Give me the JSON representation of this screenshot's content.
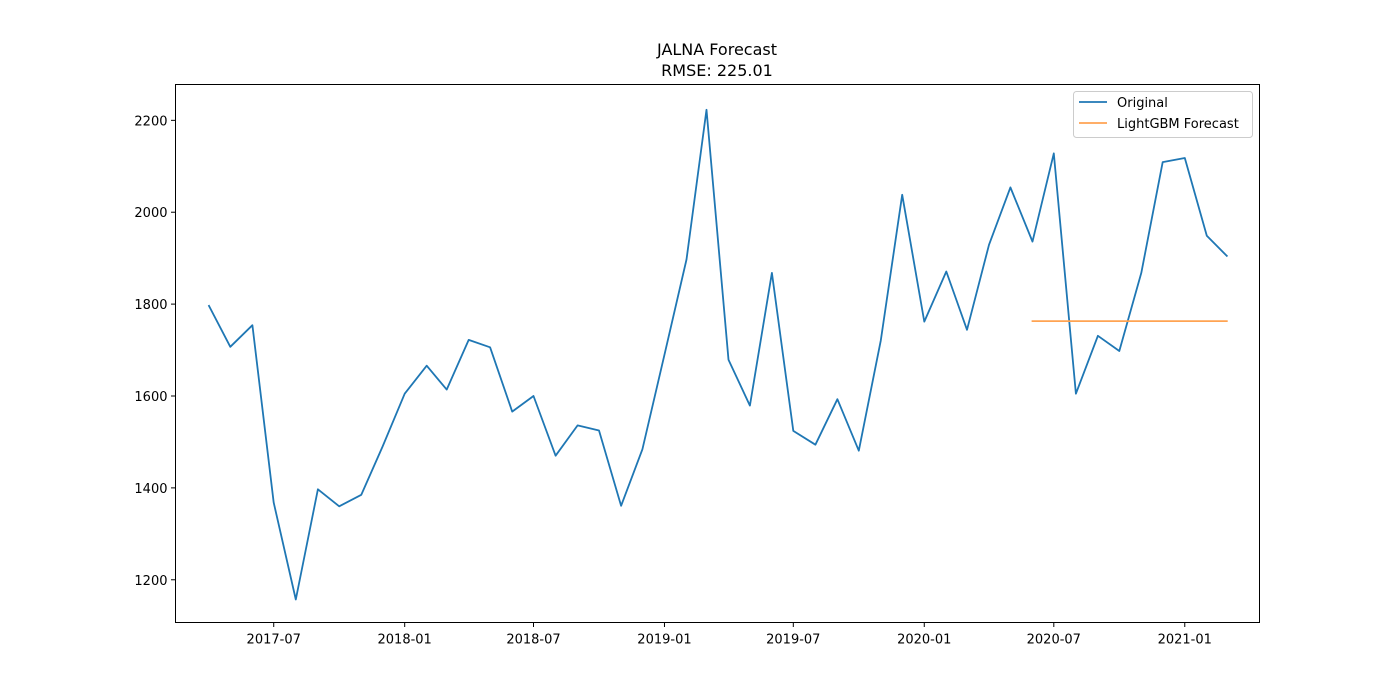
{
  "chart_data": {
    "type": "line",
    "title": "JALNA Forecast",
    "subtitle": "RMSE: 225.01",
    "xlabel": "",
    "ylabel": "",
    "x_ticks": [
      "2017-07",
      "2018-01",
      "2018-07",
      "2019-01",
      "2019-07",
      "2020-01",
      "2020-07",
      "2021-01"
    ],
    "y_ticks": [
      1200,
      1400,
      1600,
      1800,
      2000,
      2200
    ],
    "xlim": [
      "2017-02-13",
      "2021-04-16"
    ],
    "ylim": [
      1107,
      2278
    ],
    "grid": false,
    "legend_position": "top-right",
    "series": [
      {
        "name": "Original",
        "color": "#1f77b4",
        "points": [
          [
            "2017-04-01",
            1796
          ],
          [
            "2017-05-01",
            1707
          ],
          [
            "2017-06-01",
            1754
          ],
          [
            "2017-07-01",
            1368
          ],
          [
            "2017-08-01",
            1157
          ],
          [
            "2017-09-01",
            1397
          ],
          [
            "2017-10-01",
            1360
          ],
          [
            "2017-11-01",
            1385
          ],
          [
            "2017-12-01",
            1490
          ],
          [
            "2018-01-01",
            1605
          ],
          [
            "2018-02-01",
            1666
          ],
          [
            "2018-03-01",
            1614
          ],
          [
            "2018-04-01",
            1722
          ],
          [
            "2018-05-01",
            1706
          ],
          [
            "2018-06-01",
            1566
          ],
          [
            "2018-07-01",
            1600
          ],
          [
            "2018-08-01",
            1470
          ],
          [
            "2018-09-01",
            1536
          ],
          [
            "2018-10-01",
            1525
          ],
          [
            "2018-11-01",
            1361
          ],
          [
            "2018-12-01",
            1484
          ],
          [
            "2019-01-01",
            1690
          ],
          [
            "2019-02-01",
            1897
          ],
          [
            "2019-03-01",
            2223
          ],
          [
            "2019-04-01",
            1679
          ],
          [
            "2019-05-01",
            1579
          ],
          [
            "2019-06-01",
            1868
          ],
          [
            "2019-07-01",
            1524
          ],
          [
            "2019-08-01",
            1494
          ],
          [
            "2019-09-01",
            1593
          ],
          [
            "2019-10-01",
            1481
          ],
          [
            "2019-11-01",
            1721
          ],
          [
            "2019-12-01",
            2038
          ],
          [
            "2020-01-01",
            1762
          ],
          [
            "2020-02-01",
            1871
          ],
          [
            "2020-03-01",
            1744
          ],
          [
            "2020-04-01",
            1929
          ],
          [
            "2020-05-01",
            2054
          ],
          [
            "2020-06-01",
            1936
          ],
          [
            "2020-07-01",
            2128
          ],
          [
            "2020-08-01",
            1605
          ],
          [
            "2020-09-01",
            1731
          ],
          [
            "2020-10-01",
            1698
          ],
          [
            "2020-11-01",
            1868
          ],
          [
            "2020-12-01",
            2109
          ],
          [
            "2021-01-01",
            2118
          ],
          [
            "2021-02-01",
            1949
          ],
          [
            "2021-03-01",
            1905
          ]
        ]
      },
      {
        "name": "LightGBM Forecast",
        "color": "#ffa352",
        "points": [
          [
            "2020-06-01",
            1763
          ],
          [
            "2020-07-01",
            1763
          ],
          [
            "2020-08-01",
            1763
          ],
          [
            "2020-09-01",
            1763
          ],
          [
            "2020-10-01",
            1763
          ],
          [
            "2020-11-01",
            1763
          ],
          [
            "2020-12-01",
            1763
          ],
          [
            "2021-01-01",
            1763
          ],
          [
            "2021-02-01",
            1763
          ],
          [
            "2021-03-01",
            1763
          ]
        ]
      }
    ]
  }
}
